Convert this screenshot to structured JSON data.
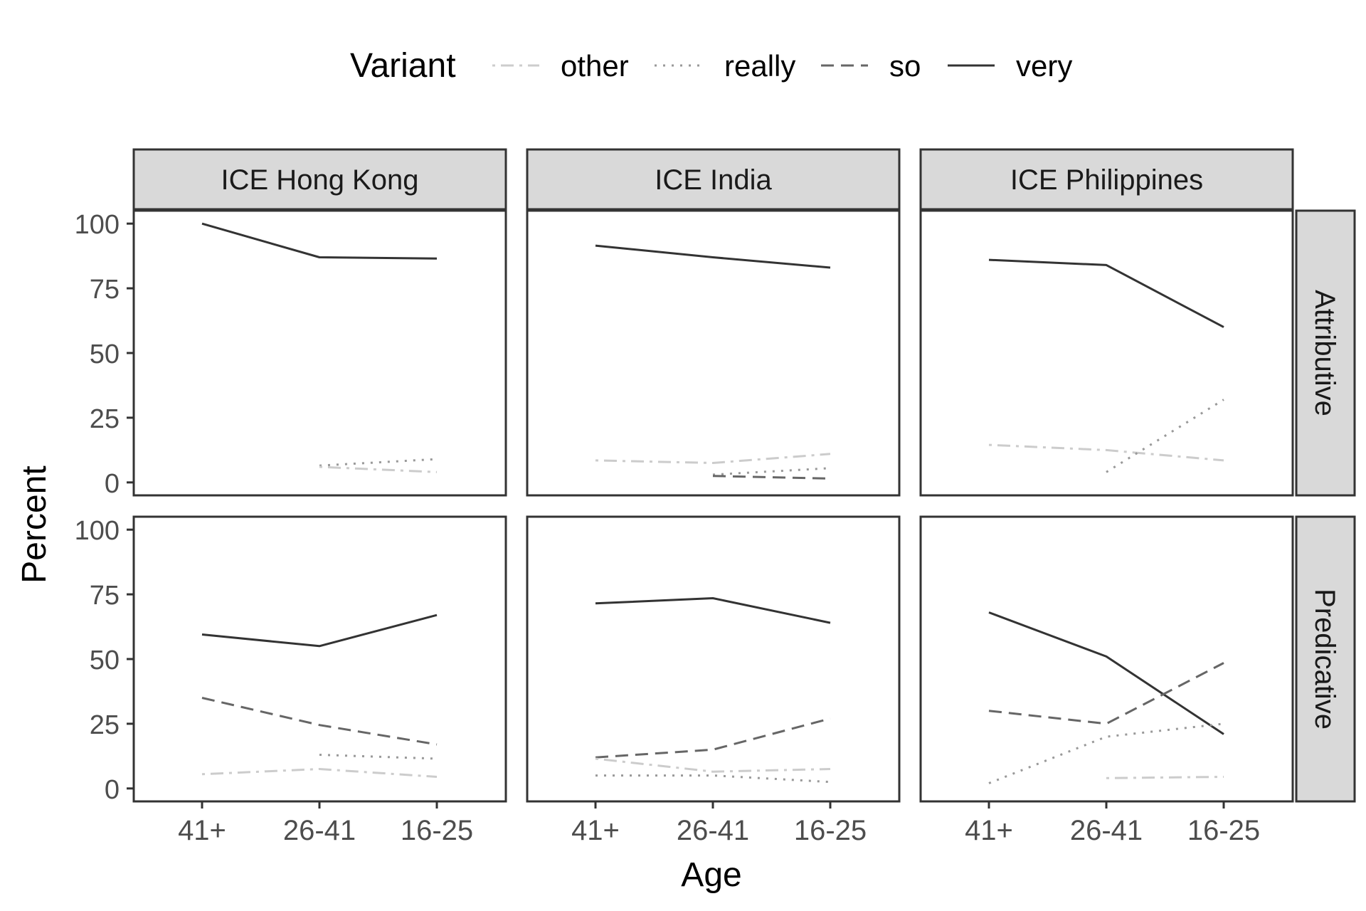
{
  "chart_data": {
    "type": "line",
    "layout": "facet_grid",
    "legend": {
      "title": "Variant",
      "position": "top",
      "entries": [
        {
          "name": "other",
          "color": "#cccccc",
          "dash": "dashdot"
        },
        {
          "name": "really",
          "color": "#999999",
          "dash": "dotted"
        },
        {
          "name": "so",
          "color": "#666666",
          "dash": "dashed"
        },
        {
          "name": "very",
          "color": "#333333",
          "dash": "solid"
        }
      ]
    },
    "xlabel": "Age",
    "ylabel": "Percent",
    "categories": [
      "41+",
      "26-41",
      "16-25"
    ],
    "ylim": [
      -5,
      105
    ],
    "yticks": [
      0,
      25,
      50,
      75,
      100
    ],
    "grid": false,
    "columns": [
      "ICE Hong Kong",
      "ICE India",
      "ICE Philippines"
    ],
    "rows": [
      "Attributive",
      "Predicative"
    ],
    "panels": [
      {
        "col": "ICE Hong Kong",
        "row": "Attributive",
        "series": [
          {
            "name": "very",
            "values": [
              100,
              87,
              86.5
            ]
          },
          {
            "name": "really",
            "values": [
              null,
              6.5,
              9
            ]
          },
          {
            "name": "other",
            "values": [
              null,
              6,
              4
            ]
          }
        ]
      },
      {
        "col": "ICE India",
        "row": "Attributive",
        "series": [
          {
            "name": "very",
            "values": [
              91.5,
              87,
              83
            ]
          },
          {
            "name": "other",
            "values": [
              8.5,
              7.5,
              11
            ]
          },
          {
            "name": "really",
            "values": [
              null,
              3,
              5.5
            ]
          },
          {
            "name": "so",
            "values": [
              null,
              2.5,
              1.5
            ]
          }
        ]
      },
      {
        "col": "ICE Philippines",
        "row": "Attributive",
        "series": [
          {
            "name": "very",
            "values": [
              86,
              84,
              60
            ]
          },
          {
            "name": "other",
            "values": [
              14.5,
              12.5,
              8.5
            ]
          },
          {
            "name": "really",
            "values": [
              null,
              4,
              32
            ]
          }
        ]
      },
      {
        "col": "ICE Hong Kong",
        "row": "Predicative",
        "series": [
          {
            "name": "very",
            "values": [
              59.5,
              55,
              67
            ]
          },
          {
            "name": "so",
            "values": [
              35,
              24.5,
              17
            ]
          },
          {
            "name": "really",
            "values": [
              null,
              13,
              11.5
            ]
          },
          {
            "name": "other",
            "values": [
              5.5,
              7.5,
              4.5
            ]
          }
        ]
      },
      {
        "col": "ICE India",
        "row": "Predicative",
        "series": [
          {
            "name": "very",
            "values": [
              71.5,
              73.5,
              64
            ]
          },
          {
            "name": "so",
            "values": [
              12,
              15,
              27
            ]
          },
          {
            "name": "other",
            "values": [
              11.5,
              6.5,
              7.5
            ]
          },
          {
            "name": "really",
            "values": [
              5,
              5,
              2.5
            ]
          }
        ]
      },
      {
        "col": "ICE Philippines",
        "row": "Predicative",
        "series": [
          {
            "name": "very",
            "values": [
              68,
              51,
              21
            ]
          },
          {
            "name": "so",
            "values": [
              30,
              25,
              48.5
            ]
          },
          {
            "name": "really",
            "values": [
              2,
              20,
              25
            ]
          },
          {
            "name": "other",
            "values": [
              null,
              4,
              4.5
            ]
          }
        ]
      }
    ]
  }
}
